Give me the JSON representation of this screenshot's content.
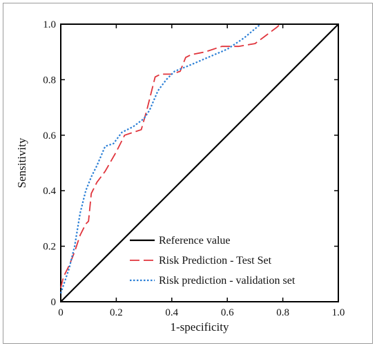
{
  "chart_data": {
    "type": "line",
    "xlabel": "1-specificity",
    "ylabel": "Sensitivity",
    "xlim": [
      0,
      1.0
    ],
    "ylim": [
      0,
      1.0
    ],
    "x_ticks": [
      "0",
      "0.2",
      "0.4",
      "0.6",
      "0.8",
      "1.0"
    ],
    "y_ticks": [
      "0",
      "0.2",
      "0.4",
      "0.6",
      "0.8",
      "1.0"
    ],
    "grid": false,
    "legend_position": "bottom-right",
    "series": [
      {
        "name": "Reference value",
        "style": "solid",
        "color": "#000000",
        "x": [
          0,
          1.0
        ],
        "y": [
          0,
          1.0
        ]
      },
      {
        "name": "Risk Prediction - Test Set",
        "style": "dashed",
        "color": "#e0343c",
        "x": [
          0.0,
          0.01,
          0.03,
          0.05,
          0.07,
          0.09,
          0.1,
          0.11,
          0.13,
          0.16,
          0.2,
          0.23,
          0.26,
          0.29,
          0.31,
          0.34,
          0.36,
          0.4,
          0.43,
          0.45,
          0.47,
          0.52,
          0.58,
          0.64,
          0.7,
          0.74,
          0.78,
          0.79
        ],
        "y": [
          0.05,
          0.09,
          0.13,
          0.18,
          0.24,
          0.28,
          0.29,
          0.39,
          0.43,
          0.47,
          0.54,
          0.6,
          0.61,
          0.62,
          0.69,
          0.81,
          0.82,
          0.82,
          0.83,
          0.88,
          0.89,
          0.9,
          0.92,
          0.92,
          0.93,
          0.96,
          0.99,
          1.0
        ],
        "x_end": 0.79
      },
      {
        "name": "Risk prediction - validation set",
        "style": "dotted",
        "color": "#2b7fd6",
        "x": [
          0.0,
          0.01,
          0.03,
          0.05,
          0.07,
          0.09,
          0.11,
          0.13,
          0.16,
          0.19,
          0.22,
          0.26,
          0.3,
          0.32,
          0.35,
          0.38,
          0.41,
          0.46,
          0.53,
          0.6,
          0.66,
          0.72
        ],
        "y": [
          0.03,
          0.06,
          0.12,
          0.2,
          0.32,
          0.4,
          0.45,
          0.49,
          0.56,
          0.57,
          0.61,
          0.63,
          0.66,
          0.69,
          0.76,
          0.8,
          0.83,
          0.85,
          0.88,
          0.91,
          0.95,
          1.0
        ]
      }
    ]
  }
}
